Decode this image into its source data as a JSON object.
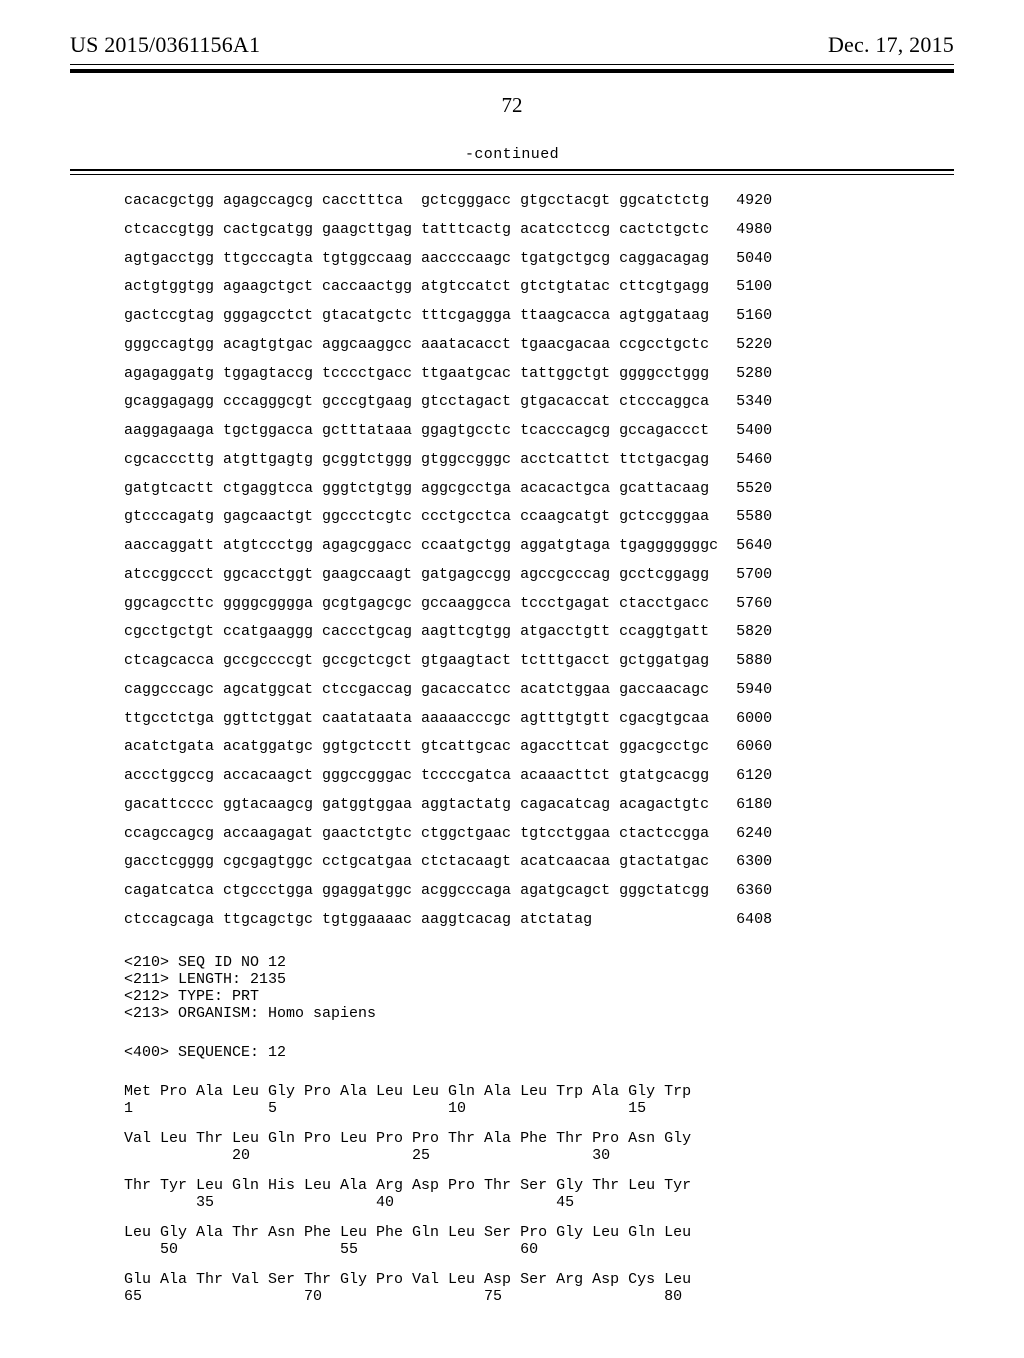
{
  "header": {
    "publication": "US 2015/0361156A1",
    "date": "Dec. 17, 2015"
  },
  "page_number": "72",
  "continued_label": "-continued",
  "sequence_block": {
    "field_spacing": {
      "group_width": 11,
      "groups_per_line": 6,
      "gap_before_index": 2
    },
    "lines": [
      {
        "groups": [
          "cacacgctgg",
          "agagccagcg",
          "cacctttca",
          "gctcgggacc",
          "gtgcctacgt",
          "ggcatctctg"
        ],
        "pos": 4920
      },
      {
        "groups": [
          "ctcaccgtgg",
          "cactgcatgg",
          "gaagcttgag",
          "tatttcactg",
          "acatcctccg",
          "cactctgctc"
        ],
        "pos": 4980
      },
      {
        "groups": [
          "agtgacctgg",
          "ttgcccagta",
          "tgtggccaag",
          "aaccccaagc",
          "tgatgctgcg",
          "caggacagag"
        ],
        "pos": 5040
      },
      {
        "groups": [
          "actgtggtgg",
          "agaagctgct",
          "caccaactgg",
          "atgtccatct",
          "gtctgtatac",
          "cttcgtgagg"
        ],
        "pos": 5100
      },
      {
        "groups": [
          "gactccgtag",
          "gggagcctct",
          "gtacatgctc",
          "tttcgaggga",
          "ttaagcacca",
          "agtggataag"
        ],
        "pos": 5160
      },
      {
        "groups": [
          "gggccagtgg",
          "acagtgtgac",
          "aggcaaggcc",
          "aaatacacct",
          "tgaacgacaa",
          "ccgcctgctc"
        ],
        "pos": 5220
      },
      {
        "groups": [
          "agagaggatg",
          "tggagtaccg",
          "tcccctgacc",
          "ttgaatgcac",
          "tattggctgt",
          "ggggcctggg"
        ],
        "pos": 5280
      },
      {
        "groups": [
          "gcaggagagg",
          "cccagggcgt",
          "gcccgtgaag",
          "gtcctagact",
          "gtgacaccat",
          "ctcccaggca"
        ],
        "pos": 5340
      },
      {
        "groups": [
          "aaggagaaga",
          "tgctggacca",
          "gctttataaa",
          "ggagtgcctc",
          "tcacccagcg",
          "gccagaccct"
        ],
        "pos": 5400
      },
      {
        "groups": [
          "cgcacccttg",
          "atgttgagtg",
          "gcggtctggg",
          "gtggccgggc",
          "acctcattct",
          "ttctgacgag"
        ],
        "pos": 5460
      },
      {
        "groups": [
          "gatgtcactt",
          "ctgaggtcca",
          "gggtctgtgg",
          "aggcgcctga",
          "acacactgca",
          "gcattacaag"
        ],
        "pos": 5520
      },
      {
        "groups": [
          "gtcccagatg",
          "gagcaactgt",
          "ggccctcgtc",
          "ccctgcctca",
          "ccaagcatgt",
          "gctccgggaa"
        ],
        "pos": 5580
      },
      {
        "groups": [
          "aaccaggatt",
          "atgtccctgg",
          "agagcggacc",
          "ccaatgctgg",
          "aggatgtaga",
          "tgagggggggc"
        ],
        "pos": 5640
      },
      {
        "groups": [
          "atccggccct",
          "ggcacctggt",
          "gaagccaagt",
          "gatgagccgg",
          "agccgcccag",
          "gcctcggagg"
        ],
        "pos": 5700
      },
      {
        "groups": [
          "ggcagccttc",
          "ggggcgggga",
          "gcgtgagcgc",
          "gccaaggcca",
          "tccctgagat",
          "ctacctgacc"
        ],
        "pos": 5760
      },
      {
        "groups": [
          "cgcctgctgt",
          "ccatgaaggg",
          "caccctgcag",
          "aagttcgtgg",
          "atgacctgtt",
          "ccaggtgatt"
        ],
        "pos": 5820
      },
      {
        "groups": [
          "ctcagcacca",
          "gccgccccgt",
          "gccgctcgct",
          "gtgaagtact",
          "tctttgacct",
          "gctggatgag"
        ],
        "pos": 5880
      },
      {
        "groups": [
          "caggcccagc",
          "agcatggcat",
          "ctccgaccag",
          "gacaccatcc",
          "acatctggaa",
          "gaccaacagc"
        ],
        "pos": 5940
      },
      {
        "groups": [
          "ttgcctctga",
          "ggttctggat",
          "caatataata",
          "aaaaacccgc",
          "agtttgtgtt",
          "cgacgtgcaa"
        ],
        "pos": 6000
      },
      {
        "groups": [
          "acatctgata",
          "acatggatgc",
          "ggtgctcctt",
          "gtcattgcac",
          "agaccttcat",
          "ggacgcctgc"
        ],
        "pos": 6060
      },
      {
        "groups": [
          "accctggccg",
          "accacaagct",
          "gggccgggac",
          "tccccgatca",
          "acaaacttct",
          "gtatgcacgg"
        ],
        "pos": 6120
      },
      {
        "groups": [
          "gacattcccc",
          "ggtacaagcg",
          "gatggtggaa",
          "aggtactatg",
          "cagacatcag",
          "acagactgtc"
        ],
        "pos": 6180
      },
      {
        "groups": [
          "ccagccagcg",
          "accaagagat",
          "gaactctgtc",
          "ctggctgaac",
          "tgtcctggaa",
          "ctactccgga"
        ],
        "pos": 6240
      },
      {
        "groups": [
          "gacctcgggg",
          "cgcgagtggc",
          "cctgcatgaa",
          "ctctacaagt",
          "acatcaacaa",
          "gtactatgac"
        ],
        "pos": 6300
      },
      {
        "groups": [
          "cagatcatca",
          "ctgccctgga",
          "ggaggatggc",
          "acggcccaga",
          "agatgcagct",
          "gggctatcgg"
        ],
        "pos": 6360
      },
      {
        "groups": [
          "ctccagcaga",
          "ttgcagctgc",
          "tgtggaaaac",
          "aaggtcacag",
          "atctatag",
          ""
        ],
        "pos": 6408
      }
    ]
  },
  "seq_meta": [
    "<210> SEQ ID NO 12",
    "<211> LENGTH: 2135",
    "<212> TYPE: PRT",
    "<213> ORGANISM: Homo sapiens"
  ],
  "sequence_header": "<400> SEQUENCE: 12",
  "peptide_block": {
    "residue_col_width": 4,
    "rows": [
      {
        "aa": [
          "Met",
          "Pro",
          "Ala",
          "Leu",
          "Gly",
          "Pro",
          "Ala",
          "Leu",
          "Leu",
          "Gln",
          "Ala",
          "Leu",
          "Trp",
          "Ala",
          "Gly",
          "Trp"
        ],
        "nums": {
          "1": 0,
          "5": 4,
          "10": 9,
          "15": 14
        }
      },
      {
        "aa": [
          "Val",
          "Leu",
          "Thr",
          "Leu",
          "Gln",
          "Pro",
          "Leu",
          "Pro",
          "Pro",
          "Thr",
          "Ala",
          "Phe",
          "Thr",
          "Pro",
          "Asn",
          "Gly"
        ],
        "nums": {
          "20": 3,
          "25": 8,
          "30": 13
        }
      },
      {
        "aa": [
          "Thr",
          "Tyr",
          "Leu",
          "Gln",
          "His",
          "Leu",
          "Ala",
          "Arg",
          "Asp",
          "Pro",
          "Thr",
          "Ser",
          "Gly",
          "Thr",
          "Leu",
          "Tyr"
        ],
        "nums": {
          "35": 2,
          "40": 7,
          "45": 12
        }
      },
      {
        "aa": [
          "Leu",
          "Gly",
          "Ala",
          "Thr",
          "Asn",
          "Phe",
          "Leu",
          "Phe",
          "Gln",
          "Leu",
          "Ser",
          "Pro",
          "Gly",
          "Leu",
          "Gln",
          "Leu"
        ],
        "nums": {
          "50": 1,
          "55": 6,
          "60": 11
        }
      },
      {
        "aa": [
          "Glu",
          "Ala",
          "Thr",
          "Val",
          "Ser",
          "Thr",
          "Gly",
          "Pro",
          "Val",
          "Leu",
          "Asp",
          "Ser",
          "Arg",
          "Asp",
          "Cys",
          "Leu"
        ],
        "nums": {
          "65": 0,
          "70": 5,
          "75": 10,
          "80": 15
        }
      }
    ]
  }
}
